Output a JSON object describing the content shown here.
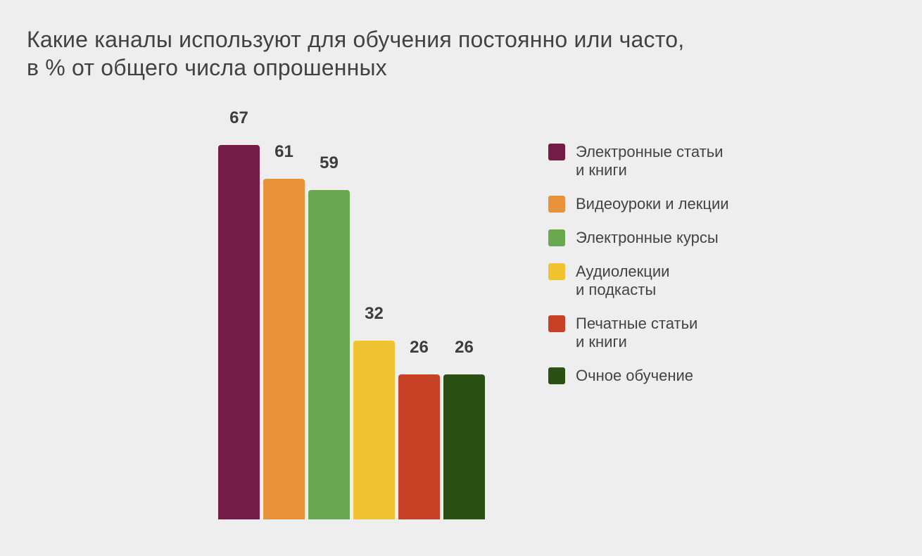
{
  "title": {
    "line1": "Какие каналы используют для обучения постоянно или часто,",
    "line2": "в % от общего числа опрошенных"
  },
  "chart_data": {
    "type": "bar",
    "title": "Какие каналы используют для обучения постоянно или часто, в % от общего числа опрошенных",
    "categories": [
      "Электронные статьи и книги",
      "Видеоуроки и лекции",
      "Электронные курсы",
      "Аудиолекции и подкасты",
      "Печатные статьи и книги",
      "Очное обучение"
    ],
    "values": [
      67,
      61,
      59,
      32,
      26,
      26
    ],
    "colors": [
      "#741b47",
      "#e8923a",
      "#6aa84f",
      "#f1c232",
      "#c84127",
      "#2a5014"
    ],
    "data_labels": true,
    "axes_visible": false,
    "gridlines": false,
    "legend_position": "right",
    "ylim": [
      0,
      67
    ]
  },
  "legend": {
    "items": [
      {
        "label_lines": [
          "Электронные статьи",
          "и книги"
        ],
        "color": "#741b47"
      },
      {
        "label_lines": [
          "Видеоуроки и лекции"
        ],
        "color": "#e8923a"
      },
      {
        "label_lines": [
          "Электронные курсы"
        ],
        "color": "#6aa84f"
      },
      {
        "label_lines": [
          "Аудиолекции",
          "и подкасты"
        ],
        "color": "#f1c232"
      },
      {
        "label_lines": [
          "Печатные статьи",
          "и книги"
        ],
        "color": "#c84127"
      },
      {
        "label_lines": [
          "Очное обучение"
        ],
        "color": "#2a5014"
      }
    ]
  },
  "style": {
    "background": "#eeeeee",
    "title_color": "#424242",
    "value_label_color": "#3d3d3d",
    "legend_text_color": "#434343"
  }
}
